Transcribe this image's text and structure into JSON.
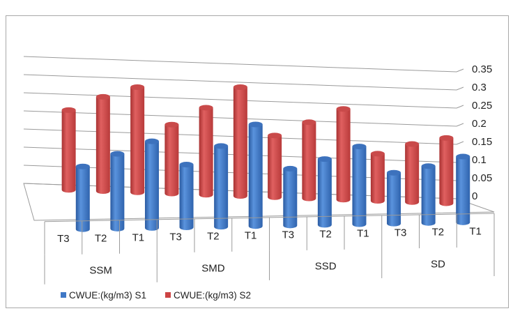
{
  "chart_data": {
    "type": "bar",
    "title": "",
    "xlabel": "",
    "ylabel": "",
    "groups": [
      "SSM",
      "SMD",
      "SSD",
      "SD"
    ],
    "categories": [
      "T3",
      "T2",
      "T1",
      "T3",
      "T2",
      "T1",
      "T3",
      "T2",
      "T1",
      "T3",
      "T2",
      "T1"
    ],
    "series": [
      {
        "name": "CWUE:(kg/m3) S1",
        "color": "#3f78c6",
        "values": [
          0.21,
          0.25,
          0.29,
          0.21,
          0.27,
          0.34,
          0.19,
          0.22,
          0.26,
          0.17,
          0.19,
          0.22
        ]
      },
      {
        "name": "CWUE:(kg/m3) S2",
        "color": "#cc4444",
        "values": [
          0.22,
          0.26,
          0.29,
          0.19,
          0.24,
          0.3,
          0.17,
          0.21,
          0.25,
          0.13,
          0.16,
          0.18
        ]
      }
    ],
    "ylim": [
      0,
      0.35
    ],
    "yticks": [
      "0",
      "0.05",
      "0.1",
      "0.15",
      "0.2",
      "0.25",
      "0.3",
      "0.35"
    ],
    "grid": true,
    "legend": "bottom-left"
  }
}
